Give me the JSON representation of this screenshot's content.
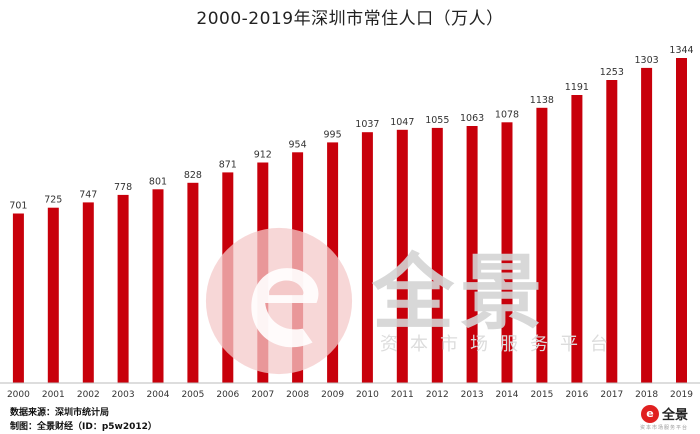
{
  "chart_data": {
    "type": "bar",
    "title": "2000-2019年深圳市常住人口（万人）",
    "xlabel": "",
    "ylabel": "",
    "ylim": [
      0,
      1400
    ],
    "grid": false,
    "categories": [
      "2000",
      "2001",
      "2002",
      "2003",
      "2004",
      "2005",
      "2006",
      "2007",
      "2008",
      "2009",
      "2010",
      "2011",
      "2012",
      "2013",
      "2014",
      "2015",
      "2016",
      "2017",
      "2018",
      "2019"
    ],
    "values": [
      701,
      725,
      747,
      778,
      801,
      828,
      871,
      912,
      954,
      995,
      1037,
      1047,
      1055,
      1063,
      1078,
      1138,
      1191,
      1253,
      1303,
      1344
    ],
    "bar_color": "#c8000b"
  },
  "watermark": {
    "brand": "全景",
    "slogan": "资本市场服务平台"
  },
  "footer": {
    "source": "数据来源：深圳市统计局",
    "producer": "制图：全景财经（ID：p5w2012）",
    "logo_mark": "e",
    "logo_text": "全景",
    "logo_sub": "资本市场服务平台"
  }
}
